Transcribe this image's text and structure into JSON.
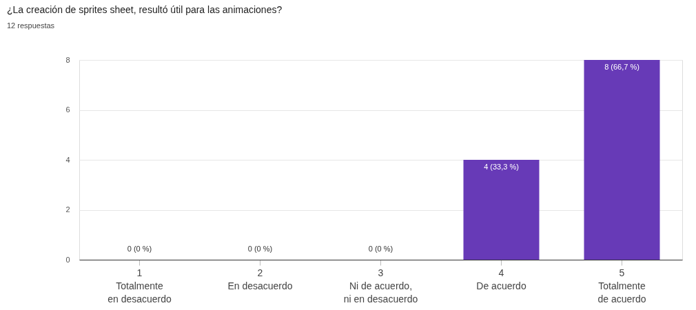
{
  "chart_data": {
    "type": "bar",
    "title": "¿La creación de sprites sheet, resultó útil para las animaciones?",
    "subtitle": "12 respuestas",
    "categories": [
      "1\nTotalmente\nen desacuerdo",
      "2\nEn desacuerdo",
      "3\nNi de acuerdo,\nni en desacuerdo",
      "4\nDe acuerdo",
      "5\nTotalmente\nde acuerdo"
    ],
    "values": [
      0,
      0,
      0,
      4,
      8
    ],
    "value_labels": [
      "0 (0 %)",
      "0 (0 %)",
      "0 (0 %)",
      "4 (33,3 %)",
      "8 (66,7 %)"
    ],
    "color": "#673ab7",
    "ylim": [
      0,
      8
    ],
    "yticks": [
      0,
      2,
      4,
      6,
      8
    ],
    "grid": "y"
  }
}
